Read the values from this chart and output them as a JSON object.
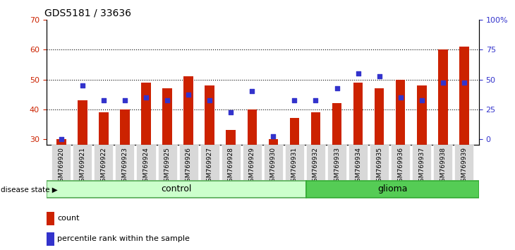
{
  "title": "GDS5181 / 33636",
  "samples": [
    "GSM769920",
    "GSM769921",
    "GSM769922",
    "GSM769923",
    "GSM769924",
    "GSM769925",
    "GSM769926",
    "GSM769927",
    "GSM769928",
    "GSM769929",
    "GSM769930",
    "GSM769931",
    "GSM769932",
    "GSM769933",
    "GSM769934",
    "GSM769935",
    "GSM769936",
    "GSM769937",
    "GSM769938",
    "GSM769939"
  ],
  "bar_values": [
    30,
    43,
    39,
    40,
    49,
    47,
    51,
    48,
    33,
    40,
    30,
    37,
    39,
    42,
    49,
    47,
    50,
    48,
    60,
    61
  ],
  "blue_values": [
    30,
    48,
    43,
    43,
    44,
    43,
    45,
    43,
    39,
    46,
    31,
    43,
    43,
    47,
    52,
    51,
    44,
    43,
    49,
    49
  ],
  "control_count": 12,
  "glioma_count": 8,
  "ylim": [
    28,
    70
  ],
  "yticks_left": [
    30,
    40,
    50,
    60,
    70
  ],
  "yticks_right_pct": [
    0,
    25,
    50,
    75,
    100
  ],
  "yticks_right_labels": [
    "0",
    "25",
    "50",
    "75",
    "100%"
  ],
  "bar_color": "#cc2200",
  "blue_color": "#3333cc",
  "control_color": "#ccffcc",
  "glioma_color": "#55cc55",
  "legend_count_label": "count",
  "legend_pct_label": "percentile rank within the sample",
  "disease_state_label": "disease state",
  "control_label": "control",
  "glioma_label": "glioma",
  "bar_width": 0.45,
  "tick_label_bg": "#d8d8d8"
}
